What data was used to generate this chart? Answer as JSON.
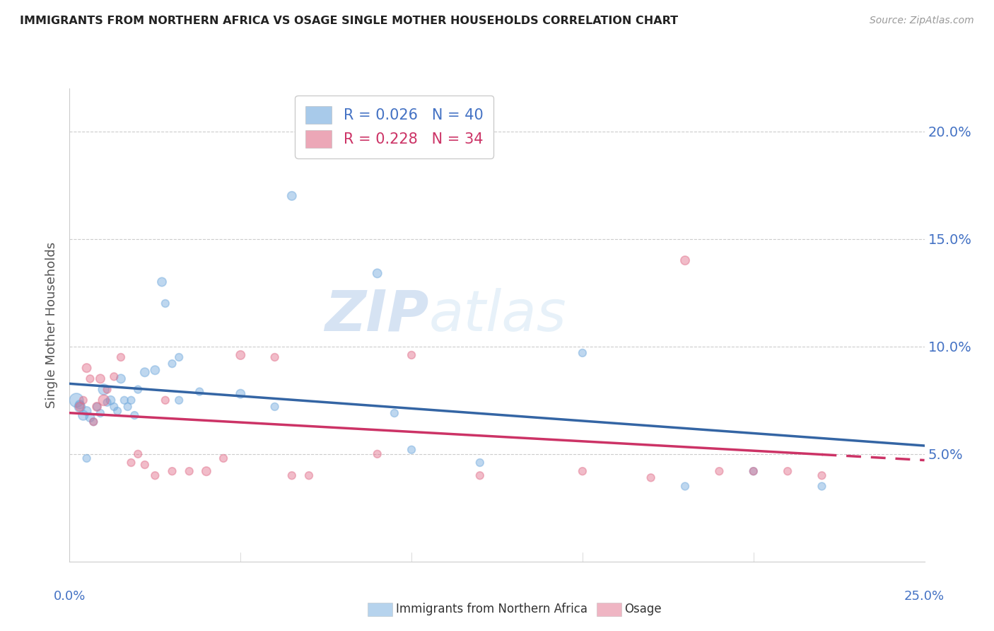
{
  "title": "IMMIGRANTS FROM NORTHERN AFRICA VS OSAGE SINGLE MOTHER HOUSEHOLDS CORRELATION CHART",
  "source": "Source: ZipAtlas.com",
  "ylabel": "Single Mother Households",
  "right_yticks": [
    "20.0%",
    "15.0%",
    "10.0%",
    "5.0%"
  ],
  "right_ytick_vals": [
    0.2,
    0.15,
    0.1,
    0.05
  ],
  "xlim": [
    0.0,
    0.25
  ],
  "ylim": [
    0.0,
    0.22
  ],
  "legend_blue_R": "0.026",
  "legend_blue_N": "40",
  "legend_pink_R": "0.228",
  "legend_pink_N": "34",
  "blue_color": "#6fa8dc",
  "pink_color": "#e06c88",
  "blue_line_color": "#3465a4",
  "pink_line_color": "#cc3366",
  "watermark_zip": "ZIP",
  "watermark_atlas": "atlas",
  "blue_scatter_x": [
    0.002,
    0.003,
    0.004,
    0.005,
    0.006,
    0.007,
    0.008,
    0.009,
    0.01,
    0.011,
    0.012,
    0.013,
    0.014,
    0.015,
    0.016,
    0.017,
    0.018,
    0.019,
    0.02,
    0.022,
    0.025,
    0.027,
    0.028,
    0.03,
    0.032,
    0.038,
    0.05,
    0.06,
    0.065,
    0.09,
    0.095,
    0.1,
    0.12,
    0.15,
    0.18,
    0.2,
    0.22,
    0.003,
    0.005,
    0.032
  ],
  "blue_scatter_y": [
    0.075,
    0.072,
    0.068,
    0.07,
    0.067,
    0.065,
    0.072,
    0.069,
    0.08,
    0.074,
    0.075,
    0.072,
    0.07,
    0.085,
    0.075,
    0.072,
    0.075,
    0.068,
    0.08,
    0.088,
    0.089,
    0.13,
    0.12,
    0.092,
    0.095,
    0.079,
    0.078,
    0.072,
    0.17,
    0.134,
    0.069,
    0.052,
    0.046,
    0.097,
    0.035,
    0.042,
    0.035,
    0.073,
    0.048,
    0.075
  ],
  "blue_scatter_sizes": [
    200,
    120,
    100,
    80,
    80,
    60,
    60,
    60,
    120,
    60,
    80,
    60,
    60,
    80,
    60,
    60,
    60,
    60,
    60,
    80,
    80,
    80,
    60,
    60,
    60,
    60,
    80,
    60,
    80,
    80,
    60,
    60,
    60,
    60,
    60,
    60,
    60,
    80,
    60,
    60
  ],
  "pink_scatter_x": [
    0.003,
    0.004,
    0.005,
    0.006,
    0.007,
    0.008,
    0.009,
    0.01,
    0.011,
    0.013,
    0.015,
    0.018,
    0.02,
    0.022,
    0.025,
    0.028,
    0.03,
    0.035,
    0.04,
    0.045,
    0.05,
    0.06,
    0.065,
    0.07,
    0.09,
    0.1,
    0.12,
    0.15,
    0.17,
    0.18,
    0.19,
    0.2,
    0.21,
    0.22
  ],
  "pink_scatter_y": [
    0.072,
    0.075,
    0.09,
    0.085,
    0.065,
    0.072,
    0.085,
    0.075,
    0.08,
    0.086,
    0.095,
    0.046,
    0.05,
    0.045,
    0.04,
    0.075,
    0.042,
    0.042,
    0.042,
    0.048,
    0.096,
    0.095,
    0.04,
    0.04,
    0.05,
    0.096,
    0.04,
    0.042,
    0.039,
    0.14,
    0.042,
    0.042,
    0.042,
    0.04
  ],
  "pink_scatter_sizes": [
    80,
    60,
    80,
    60,
    60,
    80,
    80,
    120,
    60,
    60,
    60,
    60,
    60,
    60,
    60,
    60,
    60,
    60,
    80,
    60,
    80,
    60,
    60,
    60,
    60,
    60,
    60,
    60,
    60,
    80,
    60,
    60,
    60,
    60
  ],
  "bottom_legend_label1": "Immigrants from Northern Africa",
  "bottom_legend_label2": "Osage"
}
